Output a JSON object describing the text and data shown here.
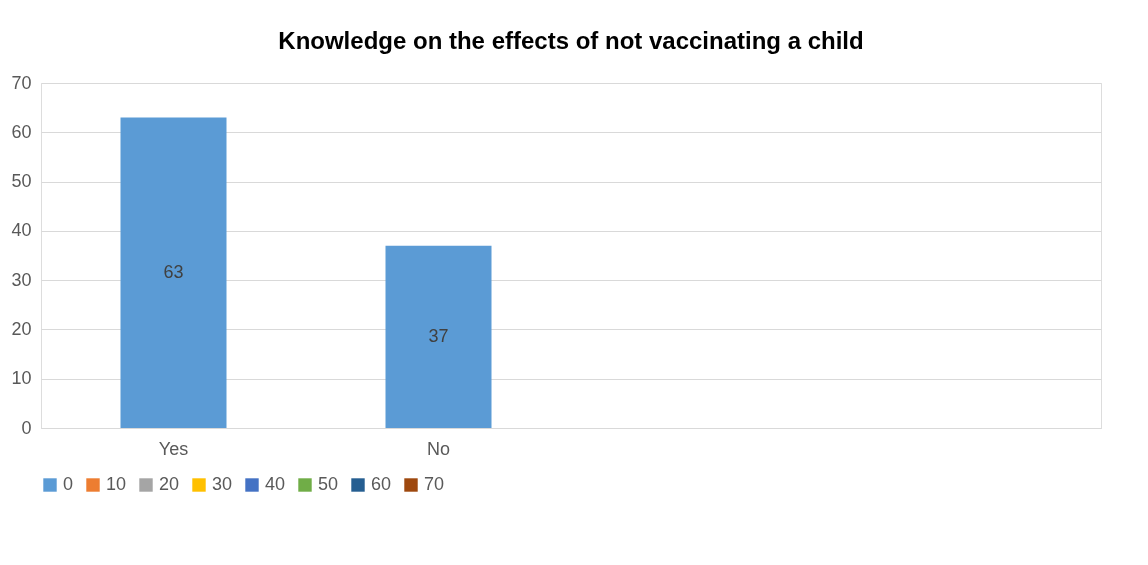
{
  "chart_data": {
    "type": "bar",
    "title": "Knowledge on the effects of not vaccinating a child",
    "categories": [
      "Yes",
      "No",
      null,
      null
    ],
    "series": [
      {
        "name": "0",
        "color": "#5b9bd5",
        "values": [
          63,
          37,
          null,
          null
        ]
      },
      {
        "name": "10",
        "color": "#ed7d31",
        "values": [
          null,
          null,
          null,
          null
        ]
      },
      {
        "name": "20",
        "color": "#a5a5a5",
        "values": [
          null,
          null,
          null,
          null
        ]
      },
      {
        "name": "30",
        "color": "#ffc000",
        "values": [
          null,
          null,
          null,
          null
        ]
      },
      {
        "name": "40",
        "color": "#4472c4",
        "values": [
          null,
          null,
          null,
          null
        ]
      },
      {
        "name": "50",
        "color": "#70ad47",
        "values": [
          null,
          null,
          null,
          null
        ]
      },
      {
        "name": "60",
        "color": "#255e91",
        "values": [
          null,
          null,
          null,
          null
        ]
      },
      {
        "name": "70",
        "color": "#9e480e",
        "values": [
          null,
          null,
          null,
          null
        ]
      }
    ],
    "ylim": [
      0,
      70
    ],
    "yticks": [
      0,
      10,
      20,
      30,
      40,
      50,
      60,
      70
    ],
    "grid": "y",
    "legend": "bottom",
    "data_labels": true
  }
}
